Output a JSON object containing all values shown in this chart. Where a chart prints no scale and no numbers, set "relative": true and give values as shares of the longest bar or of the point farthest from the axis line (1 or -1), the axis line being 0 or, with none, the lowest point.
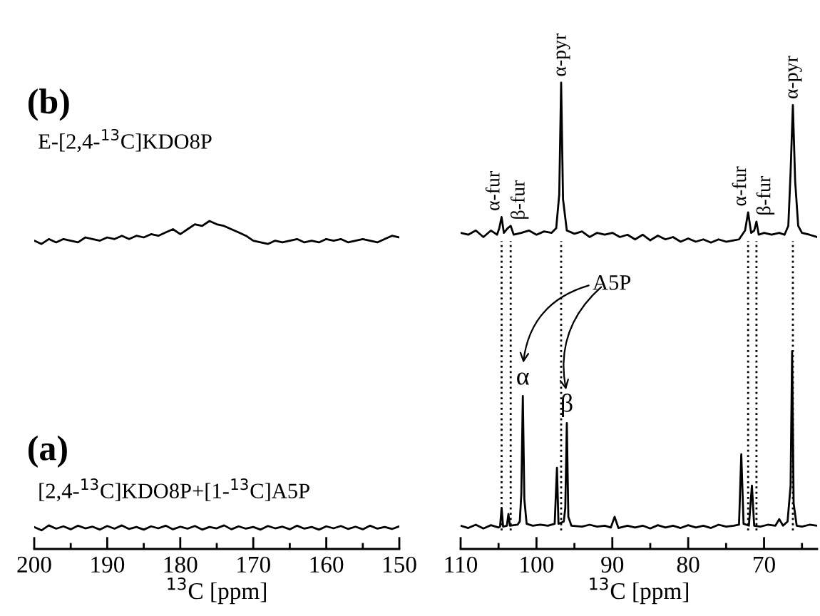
{
  "chart_data": [
    {
      "type": "line",
      "relative": true,
      "xlabel": "$^{13}$C [ppm]",
      "xlim": [
        200,
        150
      ],
      "xticks": [
        200,
        {
          "value": 195,
          "label": null
        },
        190,
        {
          "value": 185,
          "label": null
        },
        180,
        {
          "value": 175,
          "label": null
        },
        170,
        {
          "value": 165,
          "label": null
        },
        160,
        {
          "value": 155,
          "label": null
        },
        150
      ],
      "annotations": [
        "(b)",
        "E-[2,4-$^{13}$C]KDO8P",
        "(a)",
        "[2,4-$^{13}$C]KDO8P+[1-$^{13}$C]A5P"
      ],
      "series": [
        {
          "color": "#000000",
          "x": [
            200,
            199,
            198,
            197,
            196,
            195,
            194,
            193,
            192,
            191,
            190,
            189,
            188,
            187,
            186,
            185,
            184,
            183,
            182,
            181,
            180,
            179,
            178,
            177,
            176,
            175,
            174,
            173,
            172,
            171,
            170,
            169,
            168,
            167,
            166,
            165,
            164,
            163,
            162,
            161,
            160,
            159,
            158,
            157,
            156,
            155,
            154,
            153,
            152,
            151,
            150
          ],
          "values": [
            0.94,
            0.93,
            0.945,
            0.935,
            0.945,
            0.94,
            0.935,
            0.95,
            0.945,
            0.94,
            0.95,
            0.945,
            0.955,
            0.945,
            0.955,
            0.95,
            0.96,
            0.955,
            0.965,
            0.975,
            0.96,
            0.975,
            0.99,
            0.985,
            1.0,
            0.99,
            0.985,
            0.975,
            0.965,
            0.955,
            0.94,
            0.935,
            0.93,
            0.94,
            0.935,
            0.94,
            0.945,
            0.935,
            0.94,
            0.935,
            0.945,
            0.94,
            0.945,
            0.935,
            0.94,
            0.945,
            0.94,
            0.935,
            0.945,
            0.955,
            0.95
          ]
        },
        {
          "color": "#000000",
          "x": [
            200,
            199,
            198,
            197,
            196,
            195,
            194,
            193,
            192,
            191,
            190,
            189,
            188,
            187,
            186,
            185,
            184,
            183,
            182,
            181,
            180,
            179,
            178,
            177,
            176,
            175,
            174,
            173,
            172,
            171,
            170,
            169,
            168,
            167,
            166,
            165,
            164,
            163,
            162,
            161,
            160,
            159,
            158,
            157,
            156,
            155,
            154,
            153,
            152,
            151,
            150
          ],
          "values": [
            0.067,
            0.057,
            0.072,
            0.062,
            0.069,
            0.06,
            0.071,
            0.063,
            0.068,
            0.059,
            0.07,
            0.062,
            0.072,
            0.061,
            0.067,
            0.059,
            0.069,
            0.063,
            0.071,
            0.06,
            0.068,
            0.062,
            0.07,
            0.059,
            0.067,
            0.063,
            0.072,
            0.06,
            0.069,
            0.062,
            0.067,
            0.059,
            0.07,
            0.063,
            0.068,
            0.06,
            0.071,
            0.062,
            0.067,
            0.059,
            0.069,
            0.063,
            0.07,
            0.061,
            0.068,
            0.06,
            0.071,
            0.062,
            0.067,
            0.061,
            0.069
          ]
        }
      ]
    },
    {
      "type": "line",
      "relative": true,
      "xlabel": "$^{13}$C [ppm]",
      "xlim": [
        110,
        63
      ],
      "xticks": [
        110,
        {
          "value": 105,
          "label": null
        },
        100,
        {
          "value": 95,
          "label": null
        },
        90,
        {
          "value": 85,
          "label": null
        },
        80,
        {
          "value": 75,
          "label": null
        },
        70,
        {
          "value": 65,
          "label": null
        }
      ],
      "annotations": [
        {
          "text": "α-fur",
          "x": 104.6,
          "y": 0.712
        },
        {
          "text": "β-fur",
          "x": 103.4,
          "y": 0.693
        },
        {
          "text": "α-pyr",
          "x": 96.75,
          "y": 1.0
        },
        {
          "text": "α-fur",
          "x": 72.1,
          "y": 0.722
        },
        {
          "text": "β-fur",
          "x": 71.0,
          "y": 0.702
        },
        {
          "text": "α-pyr",
          "x": 66.2,
          "y": 0.952
        },
        {
          "text": "α",
          "x": 101.8,
          "y": 0.328
        },
        {
          "text": "β",
          "x": 96.0,
          "y": 0.27
        },
        "A5P"
      ],
      "ref_lines": [
        {
          "axis": "x",
          "value": 104.6,
          "line_style": "dotted",
          "color": "#000000"
        },
        {
          "axis": "x",
          "value": 103.4,
          "line_style": "dotted",
          "color": "#000000"
        },
        {
          "axis": "x",
          "value": 96.75,
          "line_style": "dotted",
          "color": "#000000"
        },
        {
          "axis": "x",
          "value": 72.1,
          "line_style": "dotted",
          "color": "#000000"
        },
        {
          "axis": "x",
          "value": 71.0,
          "line_style": "dotted",
          "color": "#000000"
        },
        {
          "axis": "x",
          "value": 66.2,
          "line_style": "dotted",
          "color": "#000000"
        }
      ],
      "series": [
        {
          "color": "#000000",
          "x": [
            110,
            109,
            108,
            107,
            106,
            105.2,
            104.9,
            104.6,
            104.3,
            103.8,
            103.4,
            103.0,
            102,
            101,
            100,
            99,
            98,
            97.4,
            97.0,
            96.75,
            96.5,
            96.0,
            95,
            94,
            93,
            92,
            91,
            90,
            89,
            88,
            87,
            86,
            85,
            84,
            83,
            82,
            81,
            80,
            79,
            78,
            77,
            76,
            75,
            74,
            73.3,
            72.5,
            72.1,
            71.7,
            71.3,
            71.0,
            70.7,
            70,
            69,
            68,
            67.3,
            66.8,
            66.5,
            66.2,
            65.9,
            65.5,
            65,
            64,
            63
          ],
          "values": [
            0.678,
            0.674,
            0.683,
            0.669,
            0.683,
            0.674,
            0.688,
            0.712,
            0.678,
            0.688,
            0.693,
            0.674,
            0.678,
            0.683,
            0.674,
            0.681,
            0.678,
            0.688,
            0.76,
            1.0,
            0.75,
            0.683,
            0.676,
            0.681,
            0.669,
            0.678,
            0.674,
            0.678,
            0.669,
            0.674,
            0.664,
            0.674,
            0.662,
            0.672,
            0.664,
            0.669,
            0.659,
            0.666,
            0.659,
            0.664,
            0.657,
            0.664,
            0.659,
            0.662,
            0.664,
            0.683,
            0.722,
            0.678,
            0.683,
            0.702,
            0.674,
            0.678,
            0.674,
            0.678,
            0.674,
            0.693,
            0.808,
            0.952,
            0.789,
            0.693,
            0.678,
            0.674,
            0.669
          ]
        },
        {
          "color": "#000000",
          "x": [
            110,
            109,
            108,
            107,
            106,
            105,
            104.8,
            104.6,
            104.4,
            103.9,
            103.7,
            103.5,
            102.5,
            102.2,
            102.0,
            101.8,
            101.6,
            101.3,
            100.5,
            99.5,
            98.5,
            97.6,
            97.3,
            97.1,
            96.4,
            96.2,
            96.0,
            95.8,
            95.4,
            94,
            93,
            92,
            91,
            90.2,
            89.7,
            89.2,
            88,
            87,
            86,
            85,
            84,
            83,
            82,
            81,
            80,
            79,
            78,
            77,
            76,
            75,
            74,
            73.3,
            73.0,
            72.7,
            72.0,
            71.6,
            71.3,
            70.5,
            69.5,
            68.5,
            68.0,
            67.5,
            66.9,
            66.5,
            66.3,
            66.1,
            65.7,
            65,
            64,
            63
          ],
          "values": [
            0.05,
            0.045,
            0.052,
            0.044,
            0.051,
            0.046,
            0.048,
            0.088,
            0.048,
            0.05,
            0.075,
            0.05,
            0.052,
            0.059,
            0.117,
            0.328,
            0.107,
            0.054,
            0.05,
            0.052,
            0.05,
            0.054,
            0.174,
            0.054,
            0.059,
            0.088,
            0.27,
            0.069,
            0.05,
            0.048,
            0.052,
            0.048,
            0.05,
            0.046,
            0.069,
            0.045,
            0.05,
            0.046,
            0.05,
            0.044,
            0.051,
            0.046,
            0.05,
            0.045,
            0.051,
            0.046,
            0.05,
            0.045,
            0.052,
            0.048,
            0.05,
            0.052,
            0.203,
            0.054,
            0.05,
            0.136,
            0.05,
            0.048,
            0.052,
            0.05,
            0.064,
            0.05,
            0.059,
            0.136,
            0.424,
            0.098,
            0.05,
            0.048,
            0.052,
            0.05
          ]
        }
      ]
    }
  ]
}
